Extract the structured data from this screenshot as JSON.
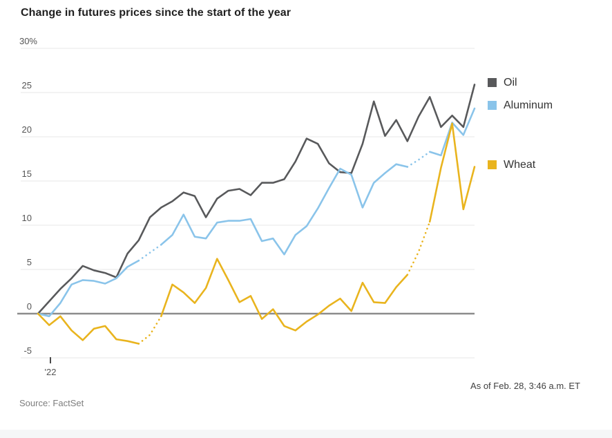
{
  "page": {
    "title": "Change in futures prices since the start of the year",
    "source": "Source: FactSet",
    "as_of": "As of Feb. 28, 3:46 a.m. ET"
  },
  "chart_data": {
    "type": "line",
    "title": "Change in futures prices since the start of the year",
    "xlabel": "",
    "ylabel": "",
    "legend_position": "right",
    "grid": true,
    "x_axis": {
      "tick_labels": [
        "'22"
      ]
    },
    "y_axis": {
      "unit": "%",
      "ticks": [
        30,
        25,
        20,
        15,
        10,
        5,
        0,
        -5
      ],
      "tick_labels": [
        "30%",
        "25",
        "20",
        "15",
        "10",
        "5",
        "0",
        "-5"
      ],
      "range": [
        -5,
        30
      ]
    },
    "series": [
      {
        "name": "Oil",
        "color": "#58595b",
        "dotted_segments": [],
        "values": [
          0,
          1.4,
          2.8,
          4.0,
          5.4,
          4.9,
          4.6,
          4.1,
          6.8,
          8.3,
          10.9,
          12.0,
          12.7,
          13.7,
          13.3,
          10.9,
          13.0,
          13.9,
          14.1,
          13.4,
          14.8,
          14.8,
          15.2,
          17.2,
          19.8,
          19.2,
          17.0,
          16.0,
          15.9,
          19.2,
          24.0,
          20.1,
          21.9,
          19.5,
          22.3,
          24.5,
          21.1,
          22.4,
          21.1,
          25.9
        ]
      },
      {
        "name": "Aluminum",
        "color": "#8ac4ea",
        "dotted_segments": [
          [
            9,
            11
          ],
          [
            33,
            35
          ]
        ],
        "values": [
          0,
          -0.3,
          1.2,
          3.3,
          3.8,
          3.7,
          3.4,
          4.0,
          5.3,
          6.0,
          6.9,
          7.8,
          8.9,
          11.2,
          8.7,
          8.5,
          10.3,
          10.5,
          10.5,
          10.7,
          8.2,
          8.5,
          6.7,
          8.9,
          9.9,
          11.9,
          14.2,
          16.4,
          15.7,
          12.0,
          14.8,
          15.9,
          16.9,
          16.6,
          17.4,
          18.3,
          17.9,
          21.6,
          20.2,
          23.2
        ]
      },
      {
        "name": "Wheat",
        "color": "#e9b41e",
        "dotted_segments": [
          [
            9,
            11
          ],
          [
            33,
            35
          ]
        ],
        "values": [
          0,
          -1.3,
          -0.3,
          -1.9,
          -3.0,
          -1.7,
          -1.4,
          -2.9,
          -3.1,
          -3.4,
          -2.4,
          -0.3,
          3.3,
          2.4,
          1.2,
          2.9,
          6.2,
          3.8,
          1.3,
          2.0,
          -0.6,
          0.5,
          -1.4,
          -1.9,
          -0.9,
          -0.1,
          0.9,
          1.7,
          0.3,
          3.5,
          1.3,
          1.2,
          3.0,
          4.4,
          7.0,
          10.4,
          16.5,
          21.5,
          11.8,
          16.6
        ]
      }
    ]
  },
  "colors": {
    "grid_line": "#e7e7e7",
    "zero_line": "#8c8c8c",
    "tick_mark": "#4a4a4a"
  }
}
